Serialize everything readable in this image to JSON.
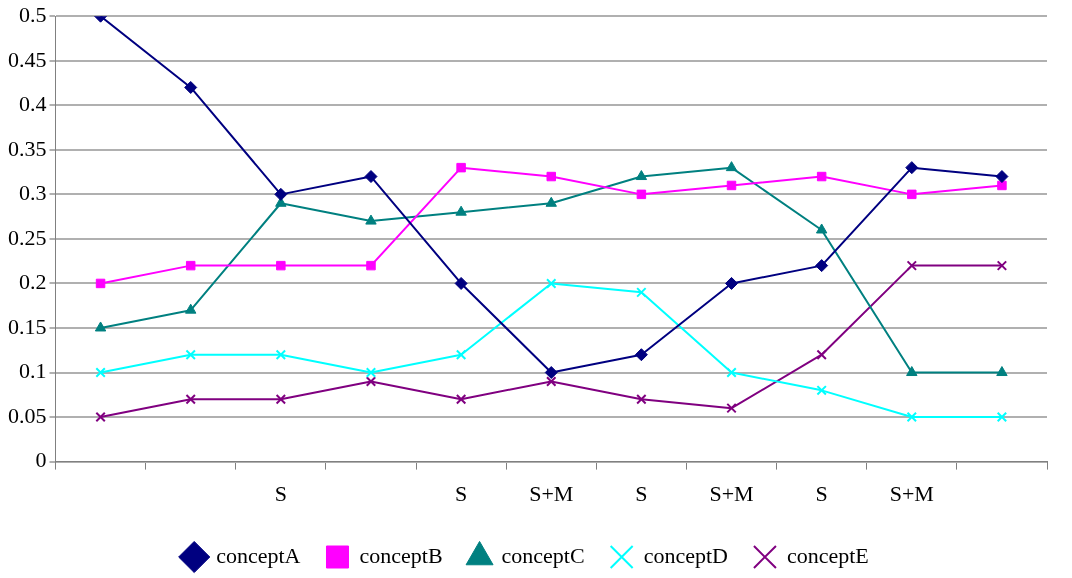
{
  "chart_data": {
    "type": "line",
    "categories": [
      null,
      null,
      "S",
      null,
      "S",
      "S+M",
      "S",
      "S+M",
      "S",
      "S+M",
      null
    ],
    "series": [
      {
        "name": "conceptA",
        "color": "#000080",
        "marker": "diamond",
        "values": [
          0.5,
          0.42,
          0.3,
          0.32,
          0.2,
          0.1,
          0.12,
          0.2,
          0.22,
          0.33,
          0.32
        ]
      },
      {
        "name": "conceptB",
        "color": "#ff00ff",
        "marker": "square",
        "values": [
          0.2,
          0.22,
          0.22,
          0.22,
          0.33,
          0.32,
          0.3,
          0.31,
          0.32,
          0.3,
          0.31
        ]
      },
      {
        "name": "conceptC",
        "color": "#008080",
        "marker": "triangle",
        "values": [
          0.15,
          0.17,
          0.29,
          0.27,
          0.28,
          0.29,
          0.32,
          0.33,
          0.26,
          0.1,
          0.1
        ]
      },
      {
        "name": "conceptD",
        "color": "#00ffff",
        "marker": "cross",
        "values": [
          0.1,
          0.12,
          0.12,
          0.1,
          0.12,
          0.2,
          0.19,
          0.1,
          0.08,
          0.05,
          0.05
        ]
      },
      {
        "name": "conceptE",
        "color": "#800080",
        "marker": "cross",
        "values": [
          0.05,
          0.07,
          0.07,
          0.09,
          0.07,
          0.09,
          0.07,
          0.06,
          0.12,
          0.22,
          0.22
        ]
      }
    ],
    "ylim": [
      0,
      0.5
    ],
    "yticks": [
      0,
      0.05,
      0.1,
      0.15,
      0.2,
      0.25,
      0.3,
      0.35,
      0.4,
      0.45,
      0.5
    ],
    "grid": "y",
    "legend": "bottom",
    "line_style": "solid"
  }
}
